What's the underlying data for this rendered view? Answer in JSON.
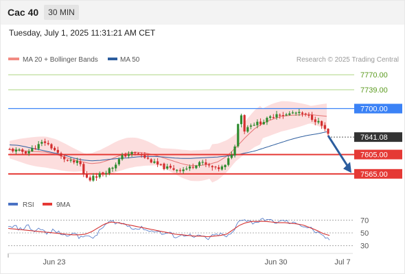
{
  "header": {
    "symbol": "Cac 40",
    "timeframe": "30 MIN"
  },
  "datetime": "Tuesday, July 1, 2025 11:31:21 AM CET",
  "legend": {
    "ma20": {
      "label": "MA 20 + Bollinger Bands",
      "color": "#f28b82"
    },
    "ma50": {
      "label": "MA 50",
      "color": "#2c5d9e"
    },
    "copyright": "Research © 2025 Trading Central"
  },
  "rsi_legend": {
    "rsi": "RSI",
    "ma9": "9MA"
  },
  "colors": {
    "up": "#2e8b2e",
    "down": "#d32f2f",
    "target": "#7cb342",
    "pivot": "#3b82f6",
    "support": "#e53935",
    "price": "#333333"
  },
  "chart_data": [
    {
      "type": "candlestick",
      "ylim": [
        7535,
        7790
      ],
      "x_labels": [
        "Jun 23",
        "Jun 30",
        "Jul 7"
      ],
      "levels": [
        {
          "value": 7770.0,
          "label": "7770.00",
          "kind": "resistance"
        },
        {
          "value": 7739.0,
          "label": "7739.00",
          "kind": "resistance"
        },
        {
          "value": 7700.0,
          "label": "7700.00",
          "kind": "pivot"
        },
        {
          "value": 7605.0,
          "label": "7605.00",
          "kind": "support"
        },
        {
          "value": 7565.0,
          "label": "7565.00",
          "kind": "support"
        }
      ],
      "last_price": {
        "value": 7641.08,
        "label": "7641.08"
      },
      "close_path": [
        7615,
        7612,
        7610,
        7620,
        7632,
        7618,
        7600,
        7590,
        7588,
        7570,
        7560,
        7568,
        7580,
        7600,
        7608,
        7606,
        7596,
        7585,
        7578,
        7575,
        7574,
        7578,
        7590,
        7582,
        7575,
        7580,
        7615,
        7650,
        7668,
        7670,
        7678,
        7690,
        7686,
        7692,
        7688,
        7682,
        7670,
        7646
      ],
      "ma20_path": [
        7615,
        7614,
        7612,
        7611,
        7610,
        7606,
        7600,
        7594,
        7590,
        7586,
        7588,
        7594,
        7602,
        7608,
        7610,
        7608,
        7604,
        7598,
        7592,
        7586,
        7582,
        7582,
        7585,
        7590,
        7602,
        7620,
        7640,
        7658,
        7670,
        7678,
        7684,
        7686,
        7687,
        7688,
        7686,
        7684
      ],
      "ma50_path": [
        7625,
        7624,
        7620,
        7616,
        7612,
        7608,
        7604,
        7598,
        7594,
        7592,
        7593,
        7595,
        7597,
        7598,
        7600,
        7601,
        7601,
        7600,
        7598,
        7597,
        7597,
        7598,
        7599,
        7600,
        7602,
        7604,
        7608,
        7612,
        7618,
        7624,
        7630,
        7636,
        7641,
        7645,
        7648,
        7652
      ]
    },
    {
      "type": "line",
      "name": "RSI",
      "ylim": [
        20,
        80
      ],
      "y_ticks": [
        "70",
        "50",
        "30"
      ],
      "rsi_path": [
        58,
        60,
        55,
        62,
        52,
        58,
        48,
        54,
        50,
        45,
        52,
        42,
        48,
        40,
        50,
        62,
        68,
        66,
        64,
        60,
        56,
        58,
        52,
        54,
        48,
        50,
        44,
        46,
        48,
        42,
        46,
        40,
        46,
        48,
        44,
        50,
        72,
        70,
        66,
        68,
        72,
        68,
        66,
        70,
        64,
        66,
        60,
        58,
        50,
        44,
        40
      ],
      "ma9_path": [
        57,
        56,
        55,
        54,
        53,
        52,
        51,
        50,
        49,
        48,
        47,
        47,
        48,
        52,
        58,
        64,
        67,
        66,
        64,
        62,
        60,
        58,
        56,
        54,
        52,
        50,
        48,
        47,
        46,
        45,
        45,
        44,
        45,
        46,
        48,
        55,
        62,
        66,
        68,
        68,
        68,
        67,
        66,
        66,
        65,
        64,
        62,
        58,
        54,
        49,
        46
      ]
    }
  ]
}
